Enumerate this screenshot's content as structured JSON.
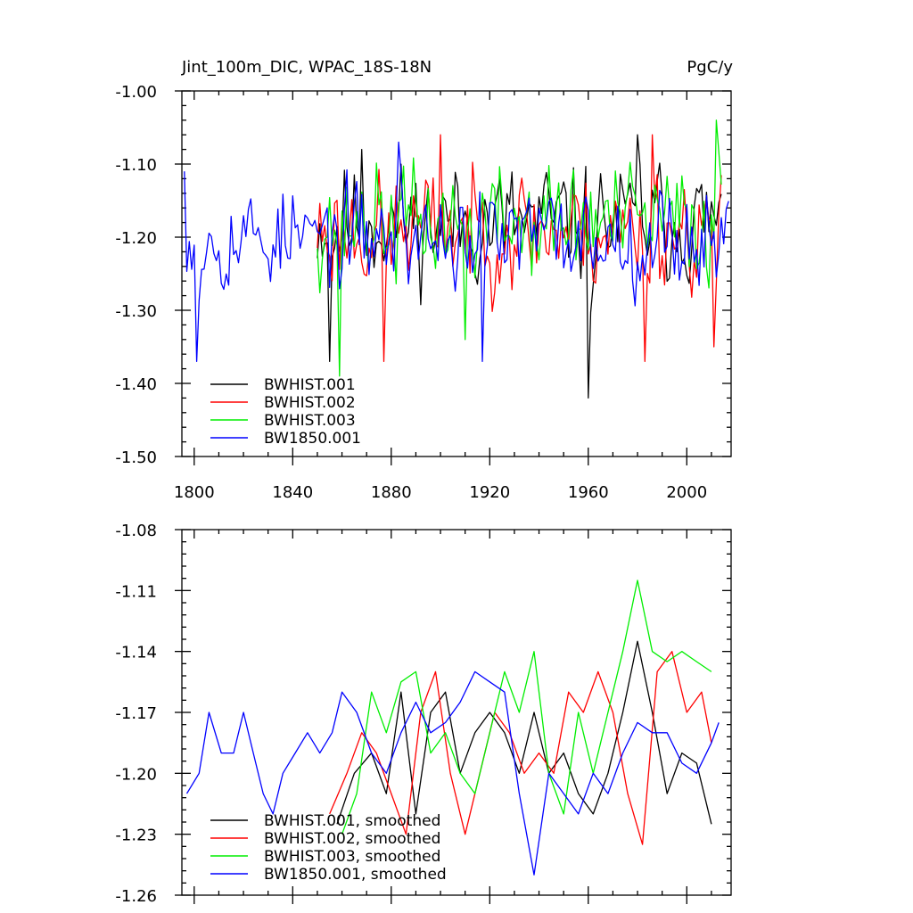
{
  "chart_data": [
    {
      "type": "line",
      "title": "Jint_100m_DIC, WPAC_18S-18N",
      "units": "PgC/y",
      "xlabel": "",
      "ylabel": "",
      "xlim": [
        1795,
        2018
      ],
      "ylim": [
        -1.5,
        -1.0
      ],
      "x_ticks": [
        1800,
        1840,
        1880,
        1920,
        1960,
        2000
      ],
      "x_tick_labels": [
        "1800",
        "1840",
        "1880",
        "1920",
        "1960",
        "2000"
      ],
      "y_ticks": [
        -1.5,
        -1.4,
        -1.3,
        -1.2,
        -1.1,
        -1.0
      ],
      "y_tick_labels": [
        "-1.50",
        "-1.40",
        "-1.30",
        "-1.20",
        "-1.10",
        "-1.00"
      ],
      "legend_position": "bottom-left",
      "series": [
        {
          "name": "BWHIST.001",
          "color": "#000000",
          "x_start": 1850,
          "x_end": 2014,
          "mean": -1.18,
          "amplitude": 0.07,
          "seed": 11,
          "peaks": [
            [
              1855,
              -1.37
            ],
            [
              1868,
              -1.08
            ],
            [
              1960,
              -1.42
            ],
            [
              1980,
              -1.06
            ]
          ]
        },
        {
          "name": "BWHIST.002",
          "color": "#ff0000",
          "x_start": 1850,
          "x_end": 2014,
          "mean": -1.19,
          "amplitude": 0.07,
          "seed": 23,
          "peaks": [
            [
              1877,
              -1.37
            ],
            [
              1900,
              -1.06
            ],
            [
              1983,
              -1.37
            ],
            [
              1986,
              -1.06
            ],
            [
              2011,
              -1.35
            ]
          ]
        },
        {
          "name": "BWHIST.003",
          "color": "#00ee00",
          "x_start": 1850,
          "x_end": 2014,
          "mean": -1.18,
          "amplitude": 0.07,
          "seed": 37,
          "peaks": [
            [
              1859,
              -1.39
            ],
            [
              1910,
              -1.34
            ],
            [
              2012,
              -1.04
            ]
          ]
        },
        {
          "name": "BW1850.001",
          "color": "#0000ff",
          "x_start": 1796,
          "x_end": 2017,
          "mean": -1.2,
          "amplitude": 0.06,
          "seed": 53,
          "peaks": [
            [
              1796,
              -1.11
            ],
            [
              1801,
              -1.37
            ],
            [
              1917,
              -1.37
            ],
            [
              1883,
              -1.07
            ]
          ]
        }
      ]
    },
    {
      "type": "line",
      "title": "",
      "xlabel": "",
      "ylabel": "",
      "xlim": [
        1795,
        2018
      ],
      "ylim": [
        -1.26,
        -1.08
      ],
      "x_ticks": [
        1800,
        1840,
        1880,
        1920,
        1960,
        2000
      ],
      "y_ticks": [
        -1.26,
        -1.23,
        -1.2,
        -1.17,
        -1.14,
        -1.11,
        -1.08
      ],
      "y_tick_labels": [
        "-1.26",
        "-1.23",
        "-1.20",
        "-1.17",
        "-1.14",
        "-1.11",
        "-1.08"
      ],
      "legend_position": "bottom-left",
      "series": [
        {
          "name": "BWHIST.001, smoothed",
          "color": "#000000",
          "x": [
            1858,
            1865,
            1872,
            1878,
            1884,
            1890,
            1896,
            1902,
            1908,
            1914,
            1920,
            1926,
            1932,
            1938,
            1944,
            1950,
            1956,
            1962,
            1968,
            1974,
            1980,
            1986,
            1992,
            1998,
            2004,
            2010
          ],
          "values": [
            -1.225,
            -1.2,
            -1.19,
            -1.21,
            -1.16,
            -1.22,
            -1.17,
            -1.16,
            -1.2,
            -1.18,
            -1.17,
            -1.18,
            -1.2,
            -1.17,
            -1.2,
            -1.19,
            -1.21,
            -1.22,
            -1.2,
            -1.17,
            -1.135,
            -1.17,
            -1.21,
            -1.19,
            -1.195,
            -1.225
          ]
        },
        {
          "name": "BWHIST.002, smoothed",
          "color": "#ff0000",
          "x": [
            1855,
            1862,
            1868,
            1874,
            1880,
            1886,
            1892,
            1898,
            1904,
            1910,
            1916,
            1922,
            1928,
            1934,
            1940,
            1946,
            1952,
            1958,
            1964,
            1970,
            1976,
            1982,
            1988,
            1994,
            2000,
            2006,
            2010
          ],
          "values": [
            -1.22,
            -1.2,
            -1.18,
            -1.19,
            -1.21,
            -1.23,
            -1.17,
            -1.15,
            -1.2,
            -1.23,
            -1.2,
            -1.17,
            -1.18,
            -1.2,
            -1.19,
            -1.2,
            -1.16,
            -1.17,
            -1.15,
            -1.17,
            -1.21,
            -1.235,
            -1.15,
            -1.14,
            -1.17,
            -1.16,
            -1.185
          ]
        },
        {
          "name": "BWHIST.003, smoothed",
          "color": "#00ee00",
          "x": [
            1860,
            1866,
            1872,
            1878,
            1884,
            1890,
            1896,
            1902,
            1908,
            1914,
            1920,
            1926,
            1932,
            1938,
            1944,
            1950,
            1956,
            1962,
            1968,
            1974,
            1980,
            1986,
            1992,
            1998,
            2004,
            2010
          ],
          "values": [
            -1.23,
            -1.21,
            -1.16,
            -1.18,
            -1.155,
            -1.15,
            -1.19,
            -1.18,
            -1.2,
            -1.21,
            -1.18,
            -1.15,
            -1.17,
            -1.14,
            -1.2,
            -1.22,
            -1.17,
            -1.2,
            -1.17,
            -1.14,
            -1.105,
            -1.14,
            -1.145,
            -1.14,
            -1.145,
            -1.15
          ]
        },
        {
          "name": "BW1850.001, smoothed",
          "color": "#0000ff",
          "x": [
            1797,
            1802,
            1806,
            1811,
            1816,
            1820,
            1824,
            1828,
            1832,
            1836,
            1841,
            1846,
            1851,
            1856,
            1860,
            1866,
            1872,
            1878,
            1884,
            1890,
            1896,
            1902,
            1908,
            1914,
            1920,
            1926,
            1932,
            1938,
            1944,
            1950,
            1956,
            1962,
            1968,
            1974,
            1980,
            1986,
            1992,
            1998,
            2004,
            2010,
            2013
          ],
          "values": [
            -1.21,
            -1.2,
            -1.17,
            -1.19,
            -1.19,
            -1.17,
            -1.19,
            -1.21,
            -1.22,
            -1.2,
            -1.19,
            -1.18,
            -1.19,
            -1.18,
            -1.16,
            -1.17,
            -1.19,
            -1.2,
            -1.18,
            -1.165,
            -1.18,
            -1.175,
            -1.165,
            -1.15,
            -1.155,
            -1.16,
            -1.21,
            -1.25,
            -1.2,
            -1.21,
            -1.22,
            -1.2,
            -1.21,
            -1.19,
            -1.175,
            -1.18,
            -1.18,
            -1.195,
            -1.2,
            -1.185,
            -1.175
          ]
        }
      ]
    }
  ]
}
